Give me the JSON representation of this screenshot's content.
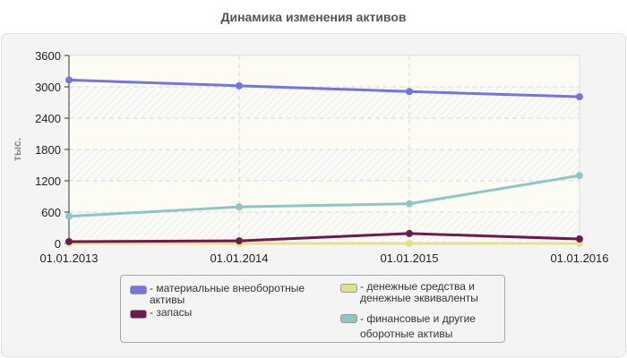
{
  "chart_data": {
    "type": "line",
    "title": "Динамика изменения активов",
    "xlabel": "",
    "ylabel": "тыс.",
    "categories": [
      "01.01.2013",
      "01.01.2014",
      "01.01.2015",
      "01.01.2016"
    ],
    "ylim": [
      0,
      3600
    ],
    "yticks": [
      0,
      600,
      1200,
      1800,
      2400,
      3000,
      3600
    ],
    "grid": true,
    "legend_position": "bottom",
    "series": [
      {
        "name": "материальные внеоборотные активы",
        "color": "#7575e0",
        "values": [
          3130,
          3020,
          2910,
          2810
        ]
      },
      {
        "name": "запасы",
        "color": "#6e1a50",
        "values": [
          35,
          50,
          190,
          85
        ]
      },
      {
        "name": "денежные средства и денежные эквиваленты",
        "color": "#e6e08c",
        "values": [
          0,
          0,
          0,
          0
        ]
      },
      {
        "name": "финансовые и другие оборотные активы",
        "color": "#8cc6c6",
        "values": [
          520,
          700,
          760,
          1300
        ]
      }
    ]
  },
  "legend": {
    "items": [
      {
        "label": "- материальные внеоборотные\nактивы",
        "color": "#7575e0"
      },
      {
        "label": "- запасы",
        "color": "#6e1a50"
      },
      {
        "label": "- денежные средства и\nденежные эквиваленты",
        "color": "#e6e08c"
      },
      {
        "label": "- финансовые и другие\nоборотные активы",
        "color": "#8cc6c6"
      }
    ]
  }
}
